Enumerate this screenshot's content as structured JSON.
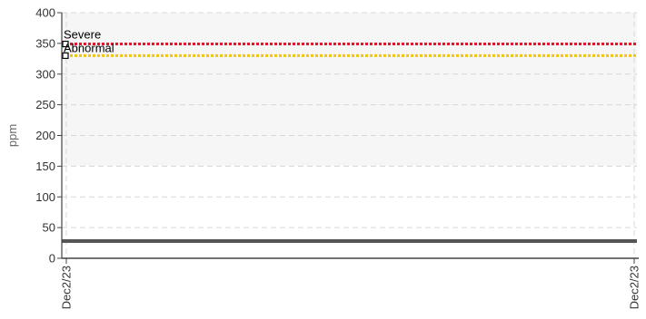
{
  "chart_data": {
    "type": "line",
    "title": "",
    "xlabel": "",
    "ylabel": "ppm",
    "ylim": [
      0,
      400
    ],
    "yticks": [
      0,
      50,
      100,
      150,
      200,
      250,
      300,
      350,
      400
    ],
    "x": [
      "Dec2/23",
      "Dec2/23"
    ],
    "grid": true,
    "series": [
      {
        "values": [
          28,
          28
        ],
        "color": "#555555"
      }
    ],
    "thresholds": [
      {
        "name": "Severe",
        "value": 349,
        "color": "#e0182a"
      },
      {
        "name": "Abnormal",
        "value": 330,
        "color": "#f2c40f"
      }
    ]
  }
}
